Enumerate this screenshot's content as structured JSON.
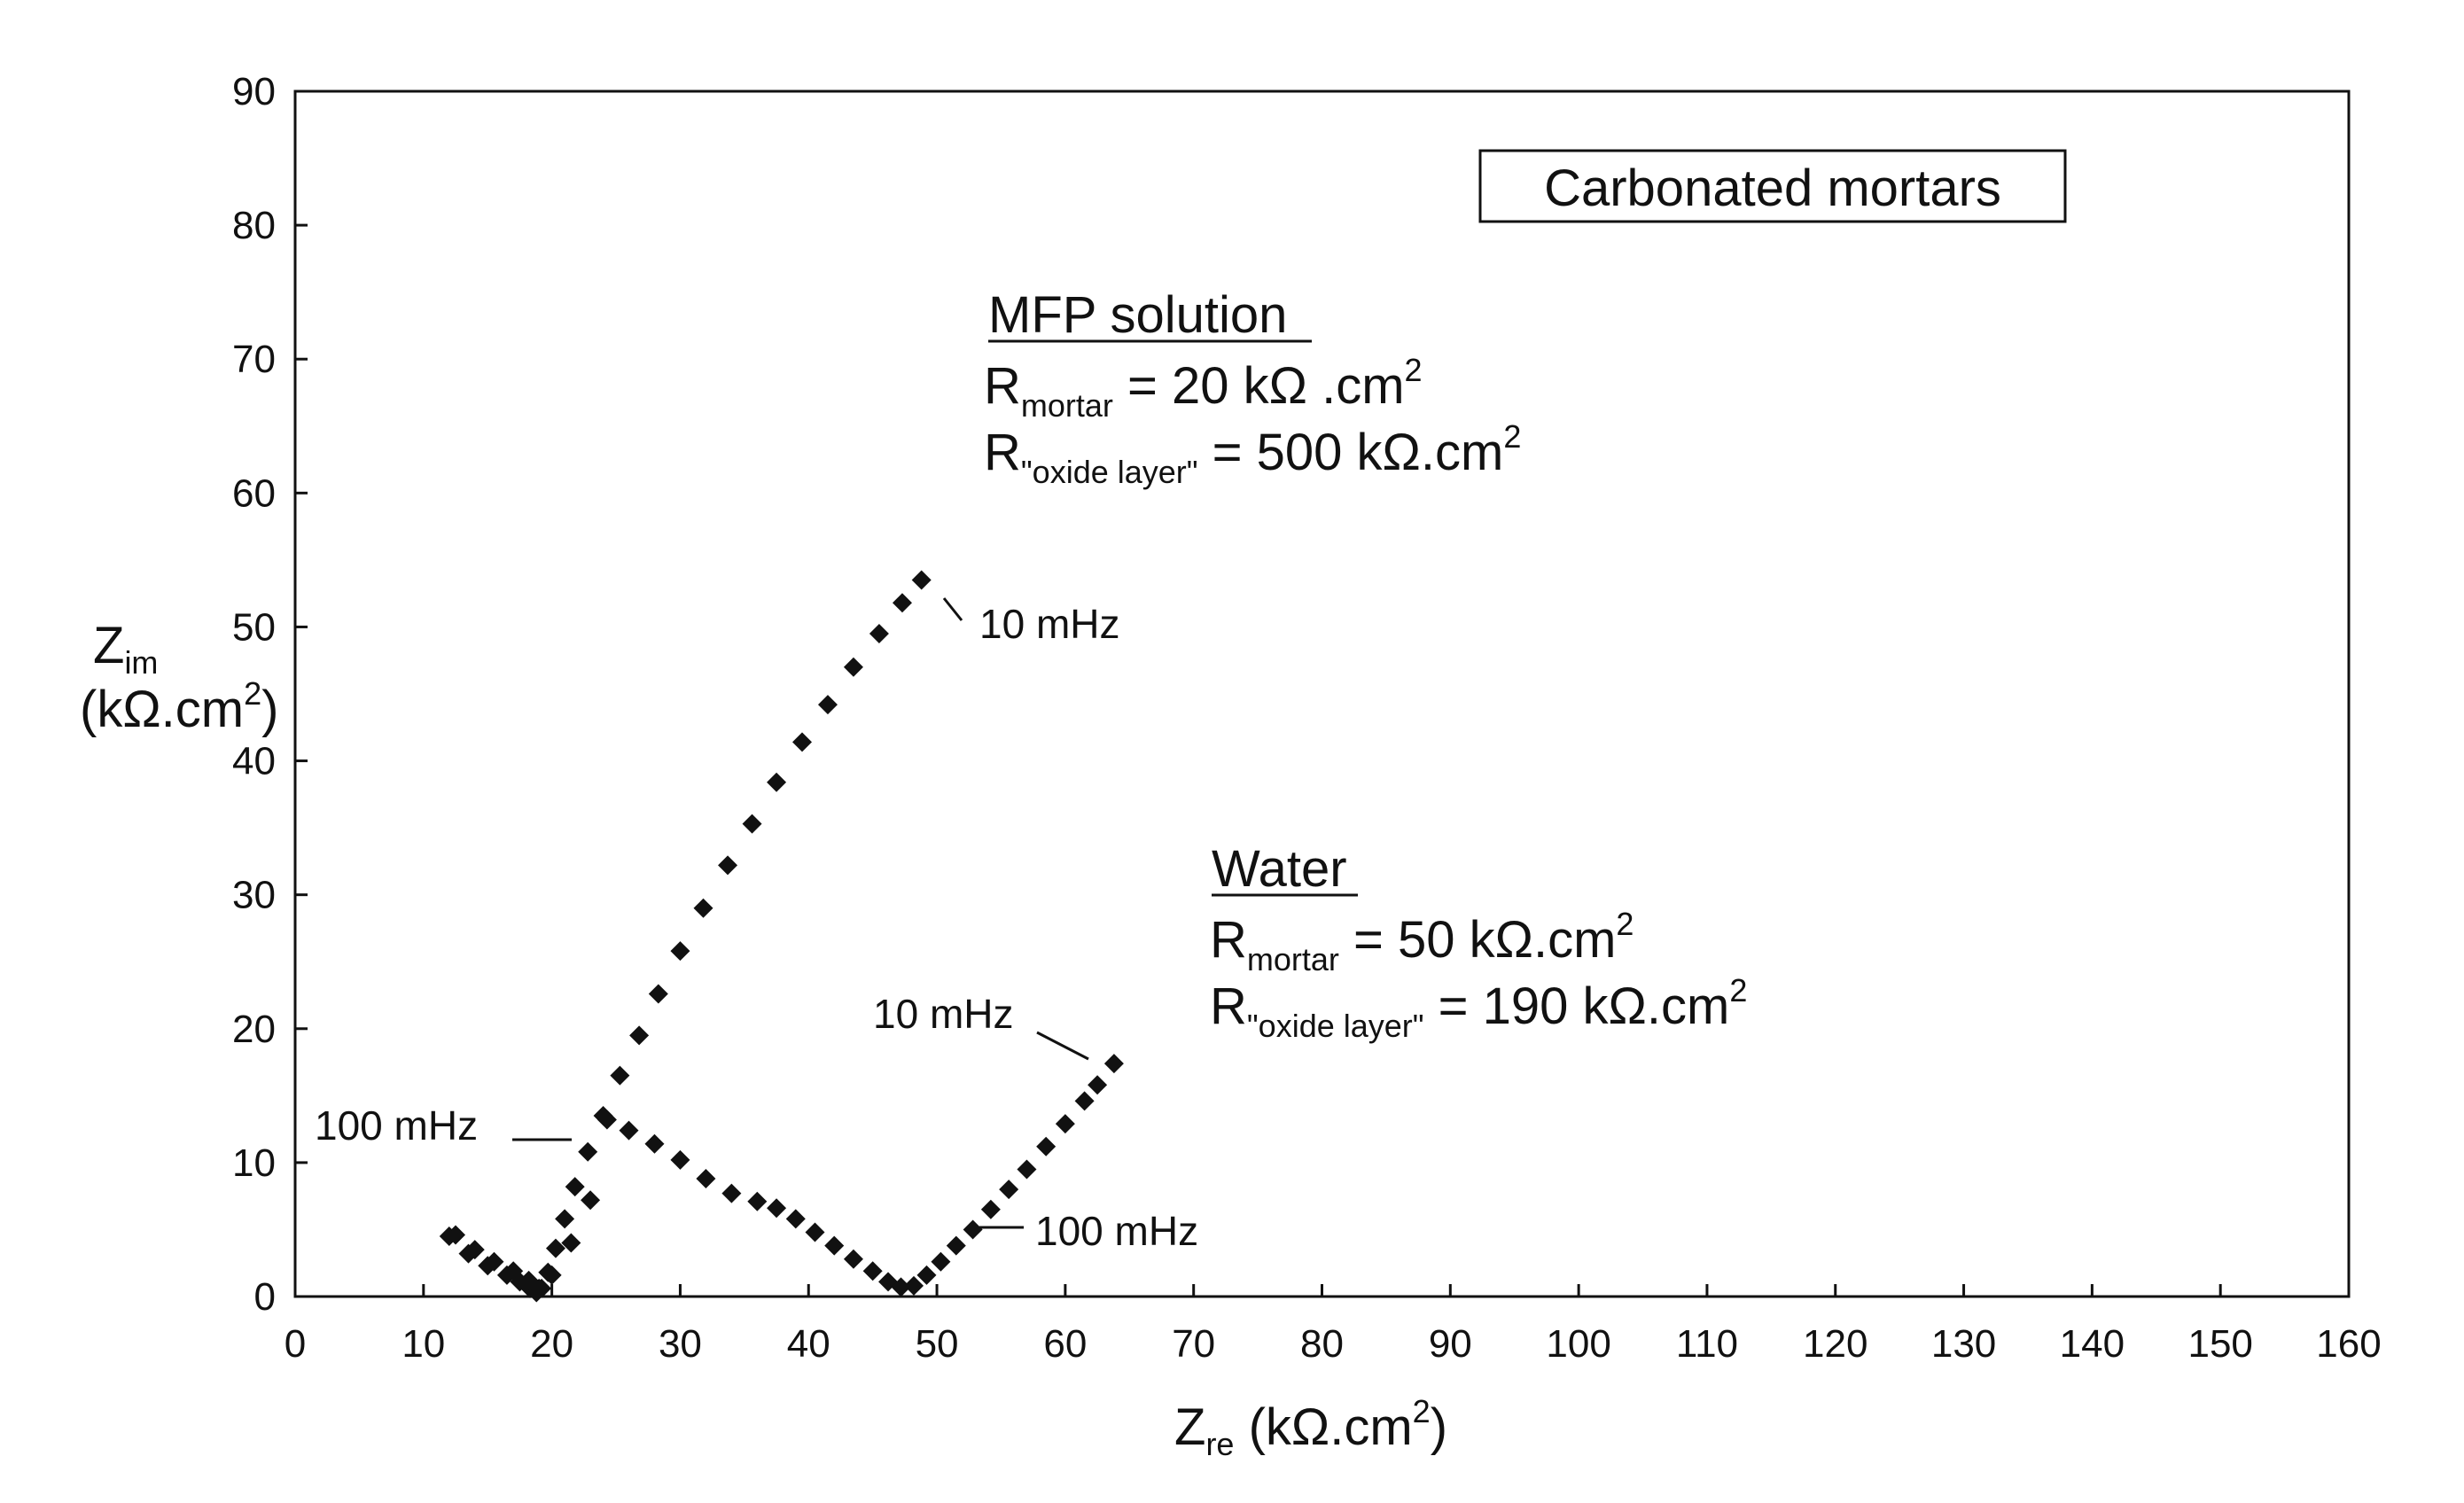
{
  "chart_data": {
    "type": "scatter",
    "title": "",
    "xlabel": "Zre (kΩ.cm2)",
    "ylabel": "Zim (kΩ.cm2)",
    "xlim": [
      0,
      160
    ],
    "ylim": [
      0,
      90
    ],
    "x_ticks": [
      0,
      10,
      20,
      30,
      40,
      50,
      60,
      70,
      80,
      90,
      100,
      110,
      120,
      130,
      140,
      150,
      160
    ],
    "y_ticks": [
      0,
      10,
      20,
      30,
      40,
      50,
      60,
      70,
      80,
      90
    ],
    "grid": false,
    "legend": "none",
    "series": [
      {
        "name": "MFP solution",
        "x": [
          12,
          13.5,
          15,
          16.5,
          17.5,
          18.3,
          18.8,
          19.2,
          19.7,
          20.3,
          21.0,
          21.8,
          22.8,
          24.0,
          25.3,
          26.8,
          28.3,
          30.0,
          31.8,
          33.7,
          35.6,
          37.5,
          39.5,
          41.5,
          43.5,
          45.5,
          47.3,
          48.8
        ],
        "y": [
          4.5,
          3.2,
          2.3,
          1.6,
          1.1,
          0.6,
          0.3,
          0.6,
          1.8,
          3.6,
          5.8,
          8.2,
          10.8,
          13.5,
          16.5,
          19.5,
          22.6,
          25.8,
          29.0,
          32.2,
          35.3,
          38.4,
          41.4,
          44.2,
          47.0,
          49.5,
          51.8,
          53.5
        ]
      },
      {
        "name": "Water",
        "x": [
          12.5,
          14,
          15.5,
          17,
          18.2,
          19.0,
          20.0,
          21.5,
          23.0,
          24.3,
          26.0,
          28.0,
          30.0,
          32.0,
          34.0,
          36.0,
          37.5,
          39.0,
          40.5,
          42.0,
          43.5,
          45.0,
          46.2,
          47.2,
          48.2,
          49.2,
          50.3,
          51.5,
          52.8,
          54.2,
          55.6,
          57.0,
          58.5,
          60.0,
          61.5,
          62.5,
          63.8
        ],
        "y": [
          4.6,
          3.5,
          2.6,
          1.9,
          1.2,
          0.6,
          1.6,
          4.0,
          7.2,
          13.2,
          12.4,
          11.4,
          10.2,
          8.8,
          7.7,
          7.1,
          6.6,
          5.8,
          4.8,
          3.8,
          2.8,
          1.9,
          1.1,
          0.7,
          0.8,
          1.6,
          2.6,
          3.8,
          5.0,
          6.5,
          8.0,
          9.5,
          11.2,
          12.9,
          14.6,
          15.8,
          17.4
        ]
      }
    ],
    "annotations": {
      "box": "Carbonated mortars",
      "mfp": {
        "heading": "MFP solution",
        "r_mortar_main": "R",
        "r_mortar_sub": "mortar",
        "r_mortar_rest": " = 20 kΩ .cm",
        "r_mortar_sup": "2",
        "r_oxide_main": "R",
        "r_oxide_sub": "\"oxide layer\"",
        "r_oxide_rest": " = 500 kΩ.cm",
        "r_oxide_sup": "2",
        "freq_high": "10 mHz",
        "freq_low": "100 mHz"
      },
      "water": {
        "heading": "Water",
        "r_mortar_main": "R",
        "r_mortar_sub": "mortar",
        "r_mortar_rest": " = 50 kΩ.cm",
        "r_mortar_sup": "2",
        "r_oxide_main": "R",
        "r_oxide_sub": "\"oxide layer\"",
        "r_oxide_rest": " = 190 kΩ.cm",
        "r_oxide_sup": "2",
        "freq_high": "10 mHz",
        "freq_low": "100 mHz"
      }
    },
    "axis_labels": {
      "x_main": "Z",
      "x_sub": "re",
      "x_rest": " (kΩ.cm",
      "x_sup": "2",
      "x_close": ")",
      "y_main": "Z",
      "y_sub": "im",
      "y_unit_open": "(kΩ.cm",
      "y_unit_sup": "2",
      "y_unit_close": ")"
    },
    "colors": {
      "marker": "#111111",
      "axis": "#111111",
      "background": "#ffffff"
    }
  }
}
